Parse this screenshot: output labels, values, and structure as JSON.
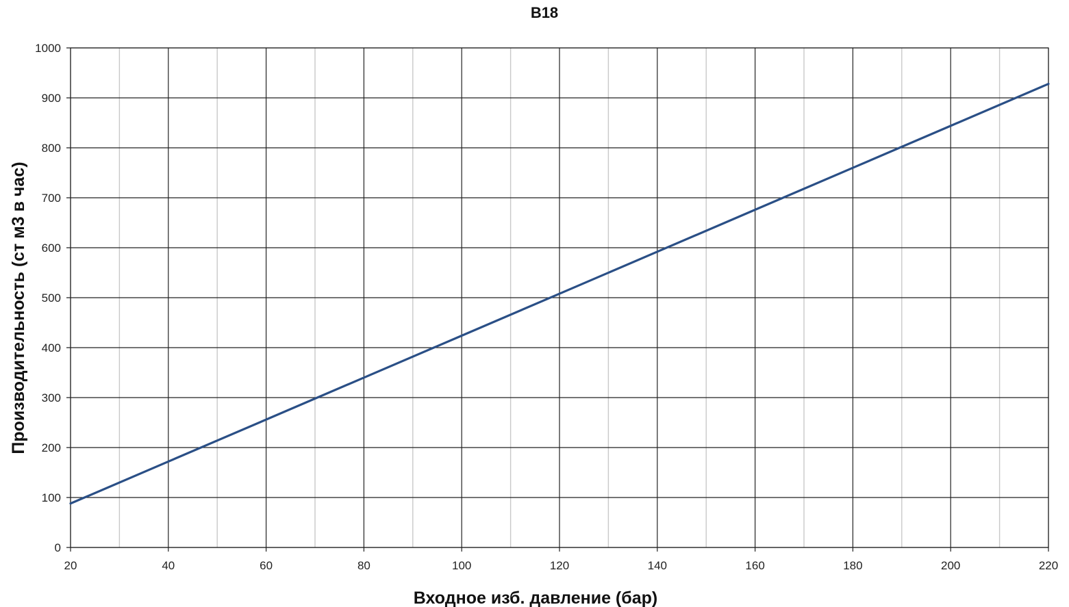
{
  "chart_data": {
    "type": "line",
    "title": "B18",
    "xlabel": "Входное изб. давление (бар)",
    "ylabel": "Производительность (ст м3 в час)",
    "xlim": [
      20,
      220
    ],
    "ylim": [
      0,
      1000
    ],
    "x_ticks": [
      20,
      40,
      60,
      80,
      100,
      120,
      140,
      160,
      180,
      200,
      220
    ],
    "y_ticks": [
      0,
      100,
      200,
      300,
      400,
      500,
      600,
      700,
      800,
      900,
      1000
    ],
    "x_tick_labels": [
      "20",
      "40",
      "60",
      "80",
      "100",
      "120",
      "140",
      "160",
      "180",
      "200",
      "220"
    ],
    "y_tick_labels": [
      "0",
      "100",
      "200",
      "300",
      "400",
      "500",
      "600",
      "700",
      "800",
      "900",
      "1000"
    ],
    "x_minor_step": 10,
    "grid": true,
    "legend": "none",
    "series": [
      {
        "color": "#2a4f86",
        "x": [
          20,
          40,
          60,
          80,
          100,
          120,
          140,
          160,
          180,
          200,
          220
        ],
        "values": [
          88,
          172,
          256,
          340,
          424,
          508,
          592,
          676,
          760,
          844,
          928
        ]
      }
    ]
  }
}
